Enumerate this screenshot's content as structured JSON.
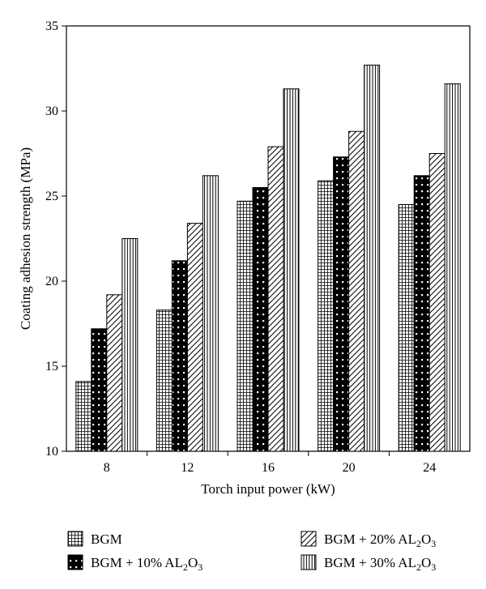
{
  "chart_data": {
    "type": "bar",
    "categories": [
      "8",
      "12",
      "16",
      "20",
      "24"
    ],
    "series": [
      {
        "name": "BGM",
        "name_sub": "",
        "name_tail": "",
        "pattern": "grid",
        "values": [
          14.1,
          18.3,
          24.7,
          25.9,
          24.5
        ]
      },
      {
        "name": "BGM + 10% AL",
        "name_sub": "2",
        "name_tail": "O",
        "name_tail_sub": "3",
        "pattern": "dots",
        "values": [
          17.2,
          21.2,
          25.5,
          27.3,
          26.2
        ]
      },
      {
        "name": "BGM + 20% AL",
        "name_sub": "2",
        "name_tail": "O",
        "name_tail_sub": "3",
        "pattern": "diagonal",
        "values": [
          19.2,
          23.4,
          27.9,
          28.8,
          27.5
        ]
      },
      {
        "name": "BGM + 30% AL",
        "name_sub": "2",
        "name_tail": "O",
        "name_tail_sub": "3",
        "pattern": "vertical",
        "values": [
          22.5,
          26.2,
          31.3,
          32.7,
          31.6
        ]
      }
    ],
    "xlabel": "Torch input power (kW)",
    "ylabel": "Coating adhesion strength (MPa)",
    "ylim": [
      10,
      35
    ],
    "yticks": [
      10,
      15,
      20,
      25,
      30,
      35
    ],
    "grid": false,
    "legend_position": "bottom"
  }
}
